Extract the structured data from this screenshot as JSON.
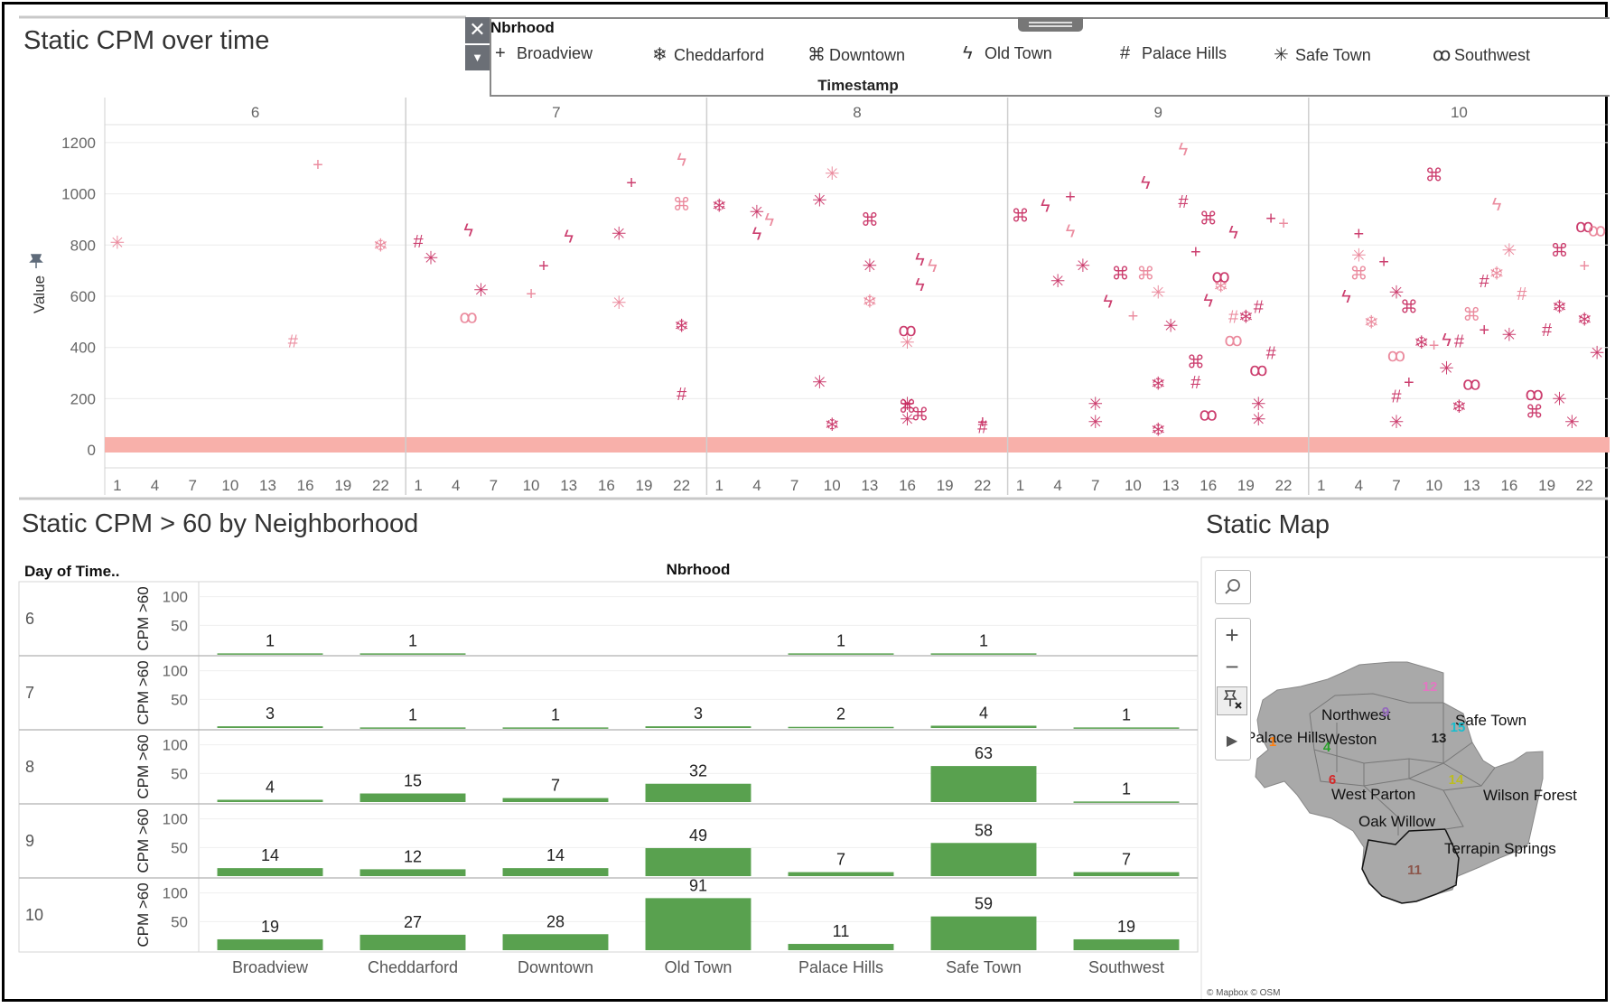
{
  "top": {
    "title": "Static CPM over time",
    "ylabel": "Value",
    "xlabel": "Timestamp"
  },
  "legend": {
    "title": "Nbrhood",
    "items": [
      {
        "label": "Broadview",
        "symbol": "+"
      },
      {
        "label": "Cheddarford",
        "symbol": "❄"
      },
      {
        "label": "Downtown",
        "symbol": "⌘"
      },
      {
        "label": "Old Town",
        "symbol": "ϟ"
      },
      {
        "label": "Palace Hills",
        "symbol": "#"
      },
      {
        "label": "Safe Town",
        "symbol": "✳"
      },
      {
        "label": "Southwest",
        "symbol": "ꝏ"
      }
    ]
  },
  "bottom": {
    "title": "Static CPM > 60 by Neighborhood",
    "row_header": "Day of Time..",
    "col_header": "Nbrhood",
    "measure_label": "CPM >60"
  },
  "map": {
    "title": "Static Map",
    "credit": "© Mapbox © OSM",
    "labels": [
      {
        "text": "Northwest"
      },
      {
        "text": "Safe Town"
      },
      {
        "text": "Palace Hills"
      },
      {
        "text": "Weston"
      },
      {
        "text": "West Parton"
      },
      {
        "text": "Wilson Forest"
      },
      {
        "text": "Oak Willow"
      },
      {
        "text": "Terrapin Springs"
      }
    ],
    "markers": [
      {
        "text": "12",
        "color": "#e377c2"
      },
      {
        "text": "9",
        "color": "#9467bd"
      },
      {
        "text": "15",
        "color": "#17becf"
      },
      {
        "text": "13",
        "color": "#222222"
      },
      {
        "text": "1",
        "color": "#ff7f0e"
      },
      {
        "text": "4",
        "color": "#2ca02c"
      },
      {
        "text": "6",
        "color": "#d62728"
      },
      {
        "text": "14",
        "color": "#bcbd22"
      },
      {
        "text": "11",
        "color": "#8c564b"
      }
    ]
  },
  "colors": {
    "scatter": "#c41e56",
    "scatter_light": "#e8798f",
    "baseline": "#f8b0aa",
    "bars": "#59a14f",
    "map_fill": "#a9a9a9"
  },
  "chart_data": [
    {
      "type": "scatter",
      "title": "Static CPM over time",
      "xlabel": "Timestamp",
      "ylabel": "Value",
      "panels": [
        "6",
        "7",
        "8",
        "9",
        "10"
      ],
      "x_ticks": [
        "1",
        "4",
        "7",
        "10",
        "13",
        "16",
        "19",
        "22"
      ],
      "y_ticks": [
        "0",
        "200",
        "400",
        "600",
        "800",
        "1000",
        "1200"
      ],
      "ylim": [
        -70,
        1270
      ],
      "xlim": [
        0,
        24
      ],
      "baseline_band": [
        0,
        50
      ],
      "series": [
        {
          "name": "Broadview",
          "points": [
            {
              "day": 6,
              "hour": 17,
              "value": 1115
            },
            {
              "day": 7,
              "hour": 18,
              "value": 1045
            },
            {
              "day": 7,
              "hour": 11,
              "value": 720
            },
            {
              "day": 7,
              "hour": 10,
              "value": 610
            },
            {
              "day": 8,
              "hour": 22,
              "value": 110
            },
            {
              "day": 9,
              "hour": 5,
              "value": 990
            },
            {
              "day": 9,
              "hour": 10,
              "value": 525
            },
            {
              "day": 9,
              "hour": 15,
              "value": 775
            },
            {
              "day": 9,
              "hour": 21,
              "value": 905
            },
            {
              "day": 9,
              "hour": 22,
              "value": 885
            },
            {
              "day": 10,
              "hour": 4,
              "value": 845
            },
            {
              "day": 10,
              "hour": 6,
              "value": 735
            },
            {
              "day": 10,
              "hour": 10,
              "value": 410
            },
            {
              "day": 10,
              "hour": 8,
              "value": 265
            },
            {
              "day": 10,
              "hour": 14,
              "value": 470
            },
            {
              "day": 10,
              "hour": 22,
              "value": 720
            }
          ]
        },
        {
          "name": "Cheddarford",
          "points": [
            {
              "day": 6,
              "hour": 22,
              "value": 800
            },
            {
              "day": 7,
              "hour": 22,
              "value": 485
            },
            {
              "day": 8,
              "hour": 1,
              "value": 955
            },
            {
              "day": 8,
              "hour": 13,
              "value": 580
            },
            {
              "day": 8,
              "hour": 10,
              "value": 100
            },
            {
              "day": 9,
              "hour": 12,
              "value": 260
            },
            {
              "day": 9,
              "hour": 17,
              "value": 640
            },
            {
              "day": 9,
              "hour": 19,
              "value": 520
            },
            {
              "day": 9,
              "hour": 12,
              "value": 80
            },
            {
              "day": 10,
              "hour": 5,
              "value": 500
            },
            {
              "day": 10,
              "hour": 9,
              "value": 420
            },
            {
              "day": 10,
              "hour": 12,
              "value": 170
            },
            {
              "day": 10,
              "hour": 15,
              "value": 690
            },
            {
              "day": 10,
              "hour": 20,
              "value": 560
            },
            {
              "day": 10,
              "hour": 22,
              "value": 510
            }
          ]
        },
        {
          "name": "Downtown",
          "points": [
            {
              "day": 7,
              "hour": 22,
              "value": 960
            },
            {
              "day": 8,
              "hour": 13,
              "value": 900
            },
            {
              "day": 8,
              "hour": 16,
              "value": 170
            },
            {
              "day": 8,
              "hour": 17,
              "value": 140
            },
            {
              "day": 9,
              "hour": 1,
              "value": 915
            },
            {
              "day": 9,
              "hour": 9,
              "value": 690
            },
            {
              "day": 9,
              "hour": 11,
              "value": 690
            },
            {
              "day": 9,
              "hour": 16,
              "value": 905
            },
            {
              "day": 9,
              "hour": 15,
              "value": 345
            },
            {
              "day": 10,
              "hour": 4,
              "value": 690
            },
            {
              "day": 10,
              "hour": 10,
              "value": 1075
            },
            {
              "day": 10,
              "hour": 8,
              "value": 560
            },
            {
              "day": 10,
              "hour": 13,
              "value": 530
            },
            {
              "day": 10,
              "hour": 18,
              "value": 150
            },
            {
              "day": 10,
              "hour": 20,
              "value": 780
            }
          ]
        },
        {
          "name": "Old Town",
          "points": [
            {
              "day": 7,
              "hour": 22,
              "value": 1135
            },
            {
              "day": 7,
              "hour": 5,
              "value": 860
            },
            {
              "day": 7,
              "hour": 13,
              "value": 835
            },
            {
              "day": 8,
              "hour": 5,
              "value": 900
            },
            {
              "day": 8,
              "hour": 4,
              "value": 845
            },
            {
              "day": 8,
              "hour": 17,
              "value": 745
            },
            {
              "day": 8,
              "hour": 18,
              "value": 720
            },
            {
              "day": 8,
              "hour": 17,
              "value": 645
            },
            {
              "day": 9,
              "hour": 3,
              "value": 955
            },
            {
              "day": 9,
              "hour": 5,
              "value": 855
            },
            {
              "day": 9,
              "hour": 8,
              "value": 580
            },
            {
              "day": 9,
              "hour": 11,
              "value": 1045
            },
            {
              "day": 9,
              "hour": 14,
              "value": 1175
            },
            {
              "day": 9,
              "hour": 18,
              "value": 850
            },
            {
              "day": 9,
              "hour": 16,
              "value": 585
            },
            {
              "day": 10,
              "hour": 15,
              "value": 960
            },
            {
              "day": 10,
              "hour": 11,
              "value": 430
            },
            {
              "day": 10,
              "hour": 3,
              "value": 600
            }
          ]
        },
        {
          "name": "Palace Hills",
          "points": [
            {
              "day": 6,
              "hour": 15,
              "value": 425
            },
            {
              "day": 7,
              "hour": 1,
              "value": 815
            },
            {
              "day": 7,
              "hour": 22,
              "value": 220
            },
            {
              "day": 8,
              "hour": 22,
              "value": 90
            },
            {
              "day": 9,
              "hour": 14,
              "value": 970
            },
            {
              "day": 9,
              "hour": 15,
              "value": 265
            },
            {
              "day": 9,
              "hour": 18,
              "value": 520
            },
            {
              "day": 9,
              "hour": 20,
              "value": 560
            },
            {
              "day": 9,
              "hour": 21,
              "value": 380
            },
            {
              "day": 10,
              "hour": 7,
              "value": 210
            },
            {
              "day": 10,
              "hour": 12,
              "value": 425
            },
            {
              "day": 10,
              "hour": 14,
              "value": 660
            },
            {
              "day": 10,
              "hour": 17,
              "value": 610
            },
            {
              "day": 10,
              "hour": 19,
              "value": 470
            }
          ]
        },
        {
          "name": "Safe Town",
          "points": [
            {
              "day": 6,
              "hour": 1,
              "value": 810
            },
            {
              "day": 7,
              "hour": 2,
              "value": 750
            },
            {
              "day": 7,
              "hour": 6,
              "value": 625
            },
            {
              "day": 7,
              "hour": 17,
              "value": 575
            },
            {
              "day": 7,
              "hour": 17,
              "value": 845
            },
            {
              "day": 8,
              "hour": 4,
              "value": 930
            },
            {
              "day": 8,
              "hour": 10,
              "value": 1080
            },
            {
              "day": 8,
              "hour": 9,
              "value": 975
            },
            {
              "day": 8,
              "hour": 13,
              "value": 720
            },
            {
              "day": 8,
              "hour": 16,
              "value": 420
            },
            {
              "day": 8,
              "hour": 9,
              "value": 265
            },
            {
              "day": 8,
              "hour": 16,
              "value": 180
            },
            {
              "day": 8,
              "hour": 16,
              "value": 120
            },
            {
              "day": 9,
              "hour": 4,
              "value": 660
            },
            {
              "day": 9,
              "hour": 6,
              "value": 720
            },
            {
              "day": 9,
              "hour": 12,
              "value": 615
            },
            {
              "day": 9,
              "hour": 13,
              "value": 485
            },
            {
              "day": 9,
              "hour": 7,
              "value": 180
            },
            {
              "day": 9,
              "hour": 7,
              "value": 110
            },
            {
              "day": 9,
              "hour": 20,
              "value": 180
            },
            {
              "day": 9,
              "hour": 20,
              "value": 120
            },
            {
              "day": 10,
              "hour": 4,
              "value": 760
            },
            {
              "day": 10,
              "hour": 7,
              "value": 615
            },
            {
              "day": 10,
              "hour": 11,
              "value": 320
            },
            {
              "day": 10,
              "hour": 16,
              "value": 780
            },
            {
              "day": 10,
              "hour": 16,
              "value": 450
            },
            {
              "day": 10,
              "hour": 20,
              "value": 200
            },
            {
              "day": 10,
              "hour": 21,
              "value": 110
            },
            {
              "day": 10,
              "hour": 23,
              "value": 380
            },
            {
              "day": 10,
              "hour": 7,
              "value": 110
            }
          ]
        },
        {
          "name": "Southwest",
          "points": [
            {
              "day": 7,
              "hour": 5,
              "value": 520
            },
            {
              "day": 8,
              "hour": 16,
              "value": 470
            },
            {
              "day": 9,
              "hour": 17,
              "value": 680
            },
            {
              "day": 9,
              "hour": 18,
              "value": 430
            },
            {
              "day": 9,
              "hour": 16,
              "value": 140
            },
            {
              "day": 9,
              "hour": 20,
              "value": 315
            },
            {
              "day": 10,
              "hour": 7,
              "value": 370
            },
            {
              "day": 10,
              "hour": 13,
              "value": 260
            },
            {
              "day": 10,
              "hour": 22,
              "value": 875
            },
            {
              "day": 10,
              "hour": 23,
              "value": 860
            },
            {
              "day": 10,
              "hour": 18,
              "value": 220
            }
          ]
        }
      ]
    },
    {
      "type": "bar",
      "title": "Static CPM > 60 by Neighborhood",
      "xlabel": "Nbrhood",
      "ylabel": "CPM >60",
      "categories": [
        "Broadview",
        "Cheddarford",
        "Downtown",
        "Old Town",
        "Palace Hills",
        "Safe Town",
        "Southwest"
      ],
      "rows": [
        "6",
        "7",
        "8",
        "9",
        "10"
      ],
      "y_ticks": [
        "50",
        "100"
      ],
      "ylim": [
        0,
        120
      ],
      "series": [
        {
          "values": [
            1,
            1,
            null,
            null,
            1,
            1,
            null
          ]
        },
        {
          "values": [
            3,
            1,
            1,
            3,
            2,
            4,
            1
          ]
        },
        {
          "values": [
            4,
            15,
            7,
            32,
            null,
            63,
            1
          ]
        },
        {
          "values": [
            14,
            12,
            14,
            49,
            7,
            58,
            7
          ]
        },
        {
          "values": [
            19,
            27,
            28,
            91,
            11,
            59,
            19
          ]
        }
      ]
    }
  ]
}
